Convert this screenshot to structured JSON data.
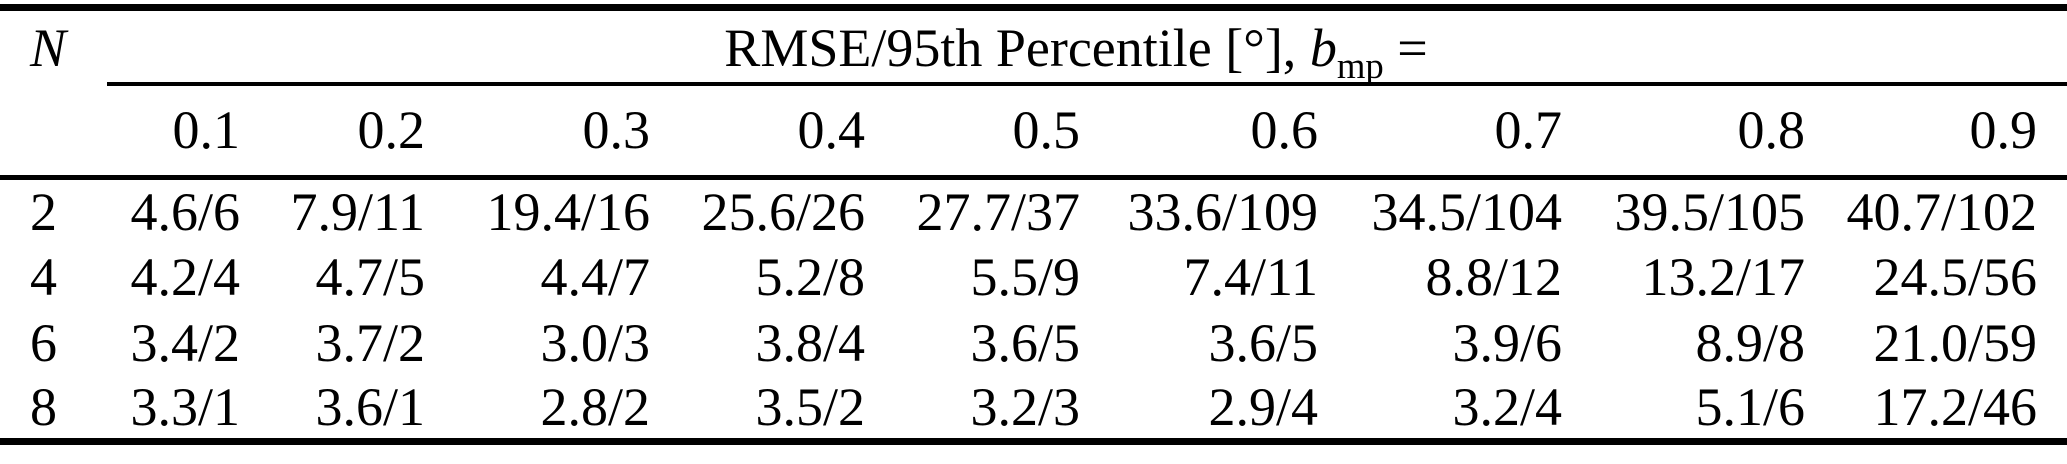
{
  "table": {
    "n_label": "N",
    "header": {
      "metric_label": "RMSE/95th Percentile [°], ",
      "param_symbol": "b",
      "param_subscript": "mp",
      "equals": " ="
    },
    "columns": [
      "0.1",
      "0.2",
      "0.3",
      "0.4",
      "0.5",
      "0.6",
      "0.7",
      "0.8",
      "0.9"
    ],
    "rows": [
      {
        "n": "2",
        "values": [
          "4.6/6",
          "7.9/11",
          "19.4/16",
          "25.6/26",
          "27.7/37",
          "33.6/109",
          "34.5/104",
          "39.5/105",
          "40.7/102"
        ]
      },
      {
        "n": "4",
        "values": [
          "4.2/4",
          "4.7/5",
          "4.4/7",
          "5.2/8",
          "5.5/9",
          "7.4/11",
          "8.8/12",
          "13.2/17",
          "24.5/56"
        ]
      },
      {
        "n": "6",
        "values": [
          "3.4/2",
          "3.7/2",
          "3.0/3",
          "3.8/4",
          "3.6/5",
          "3.6/5",
          "3.9/6",
          "8.9/8",
          "21.0/59"
        ]
      },
      {
        "n": "8",
        "values": [
          "3.3/1",
          "3.6/1",
          "2.8/2",
          "3.5/2",
          "3.2/3",
          "2.9/4",
          "3.2/4",
          "5.1/6",
          "17.2/46"
        ]
      }
    ]
  }
}
